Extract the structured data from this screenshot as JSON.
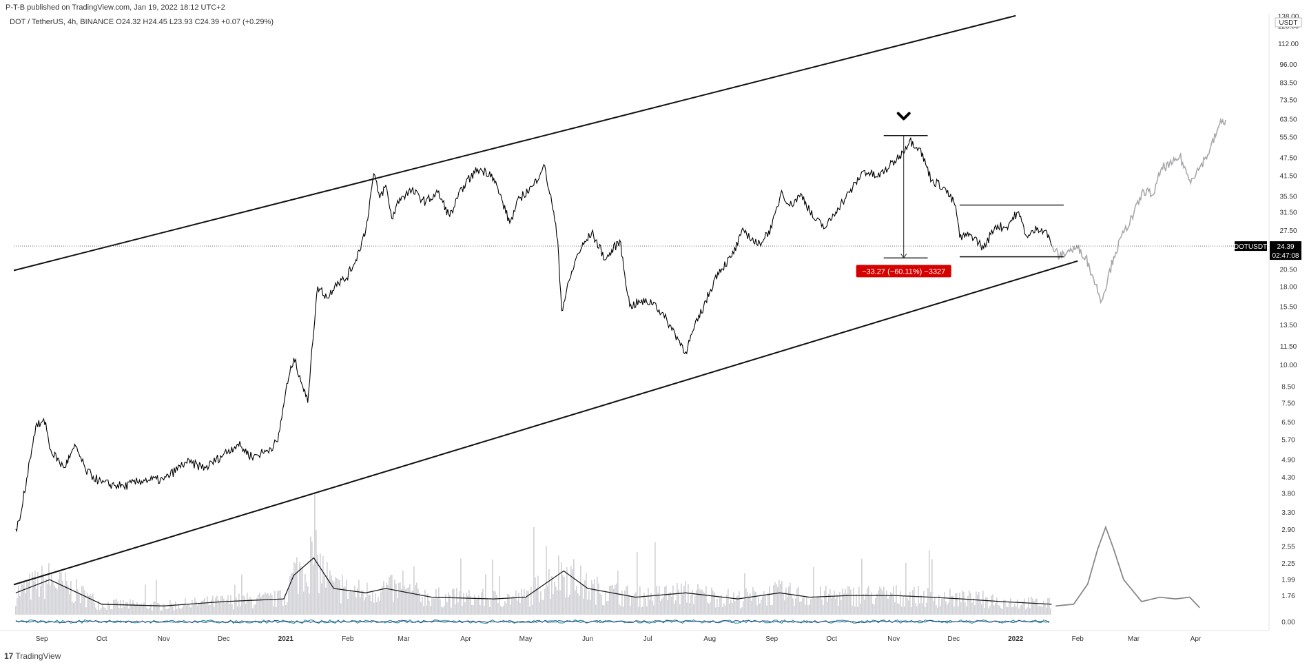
{
  "header": {
    "published": "P-T-B published on TradingView.com, Jan 19, 2022 18:12 UTC+2",
    "symbol_info": "DOT / TetherUS, 4h, BINANCE  O24.32  H24.45  L23.93  C24.39  +0.07 (+0.29%)"
  },
  "footer": {
    "logo_icon": "tradingview-logo-icon",
    "brand": "TradingView",
    "logo_glyph": "17"
  },
  "colors": {
    "price": "#000000",
    "projection": "#a8a8ad",
    "volume": "#c0c2c7",
    "badge": "#d50000",
    "osc1": "#0f8a8a",
    "osc2": "#1e3a8a"
  },
  "chart_data": {
    "type": "line",
    "symbol": "DOTUSDT",
    "interval": "4h",
    "exchange": "BINANCE",
    "currency": "USDT",
    "log_scale": true,
    "ylim": [
      1.5,
      140
    ],
    "y_ticks": [
      138.0,
      128.0,
      112.0,
      96.0,
      83.5,
      73.5,
      63.5,
      55.5,
      47.5,
      41.5,
      35.5,
      31.5,
      27.5,
      23.5,
      20.5,
      18.0,
      15.5,
      13.5,
      11.5,
      10.0,
      8.5,
      7.5,
      6.5,
      5.7,
      4.9,
      4.3,
      3.8,
      3.3,
      2.9,
      2.55,
      2.25,
      1.99,
      1.76
    ],
    "y_tick_labels": [
      "138.00",
      "128.00",
      "112.00",
      "96.00",
      "83.50",
      "73.50",
      "63.50",
      "55.50",
      "47.50",
      "41.50",
      "35.50",
      "31.50",
      "27.50",
      "23.50",
      "20.50",
      "18.00",
      "15.50",
      "13.50",
      "11.50",
      "10.00",
      "8.50",
      "7.50",
      "6.50",
      "5.70",
      "4.90",
      "4.30",
      "3.80",
      "3.30",
      "2.90",
      "2.55",
      "2.25",
      "1.99",
      "1.76"
    ],
    "osc_tick_label": "0.00",
    "x_ticks": [
      "Sep",
      "Oct",
      "Nov",
      "Dec",
      "2021",
      "Feb",
      "Mar",
      "Apr",
      "May",
      "Jun",
      "Jul",
      "Aug",
      "Sep",
      "Oct",
      "Nov",
      "Dec",
      "2022",
      "Feb",
      "Mar",
      "Apr"
    ],
    "x_tick_dates": [
      "2020-09-01",
      "2020-10-01",
      "2020-11-01",
      "2020-12-01",
      "2021-01-01",
      "2021-02-01",
      "2021-03-01",
      "2021-04-01",
      "2021-05-01",
      "2021-06-01",
      "2021-07-01",
      "2021-08-01",
      "2021-09-01",
      "2021-10-01",
      "2021-11-01",
      "2021-12-01",
      "2022-01-01",
      "2022-02-01",
      "2022-03-01",
      "2022-04-01"
    ],
    "x_range": [
      "2020-08-18",
      "2022-05-07"
    ],
    "price_series": {
      "name": "DOTUSDT",
      "x": [
        "2020-08-19",
        "2020-08-21",
        "2020-08-26",
        "2020-08-29",
        "2020-09-03",
        "2020-09-05",
        "2020-09-12",
        "2020-09-18",
        "2020-09-23",
        "2020-10-01",
        "2020-10-12",
        "2020-10-22",
        "2020-11-01",
        "2020-11-12",
        "2020-11-22",
        "2020-12-01",
        "2020-12-08",
        "2020-12-15",
        "2020-12-22",
        "2020-12-28",
        "2021-01-01",
        "2021-01-05",
        "2021-01-08",
        "2021-01-12",
        "2021-01-14",
        "2021-01-17",
        "2021-01-22",
        "2021-01-26",
        "2021-01-31",
        "2021-02-05",
        "2021-02-10",
        "2021-02-14",
        "2021-02-17",
        "2021-02-20",
        "2021-02-23",
        "2021-02-27",
        "2021-03-05",
        "2021-03-12",
        "2021-03-18",
        "2021-03-24",
        "2021-03-31",
        "2021-04-07",
        "2021-04-14",
        "2021-04-18",
        "2021-04-23",
        "2021-04-28",
        "2021-05-05",
        "2021-05-10",
        "2021-05-14",
        "2021-05-17",
        "2021-05-19",
        "2021-05-23",
        "2021-05-27",
        "2021-06-03",
        "2021-06-10",
        "2021-06-17",
        "2021-06-22",
        "2021-06-27",
        "2021-07-04",
        "2021-07-12",
        "2021-07-20",
        "2021-07-24",
        "2021-07-29",
        "2021-08-05",
        "2021-08-12",
        "2021-08-18",
        "2021-08-25",
        "2021-09-01",
        "2021-09-06",
        "2021-09-10",
        "2021-09-16",
        "2021-09-22",
        "2021-09-28",
        "2021-10-04",
        "2021-10-10",
        "2021-10-17",
        "2021-10-24",
        "2021-10-30",
        "2021-11-04",
        "2021-11-09",
        "2021-11-14",
        "2021-11-20",
        "2021-11-26",
        "2021-12-02",
        "2021-12-04",
        "2021-12-10",
        "2021-12-16",
        "2021-12-22",
        "2021-12-27",
        "2022-01-02",
        "2022-01-07",
        "2022-01-12",
        "2022-01-16",
        "2022-01-19"
      ],
      "y": [
        2.9,
        3.1,
        4.9,
        6.3,
        6.5,
        5.3,
        4.6,
        5.4,
        4.5,
        4.1,
        4.0,
        4.2,
        4.2,
        4.8,
        4.6,
        5.1,
        5.5,
        5.0,
        5.2,
        5.6,
        8.2,
        10.5,
        9.2,
        7.5,
        11.2,
        18.0,
        16.5,
        18.5,
        19.0,
        22.0,
        27.5,
        42.0,
        35.0,
        38.5,
        30.0,
        35.0,
        37.0,
        34.0,
        36.5,
        30.5,
        38.5,
        43.5,
        42.0,
        36.0,
        29.0,
        35.0,
        38.5,
        45.0,
        34.0,
        25.5,
        15.0,
        19.0,
        23.0,
        27.0,
        22.0,
        25.5,
        15.5,
        16.0,
        16.0,
        13.5,
        11.0,
        13.0,
        15.5,
        20.0,
        22.5,
        27.5,
        24.5,
        28.0,
        37.0,
        33.0,
        36.0,
        30.0,
        28.0,
        32.5,
        36.5,
        43.0,
        41.0,
        44.5,
        48.0,
        54.0,
        51.0,
        40.0,
        38.0,
        33.0,
        26.0,
        26.5,
        24.0,
        28.5,
        28.0,
        31.5,
        26.0,
        28.0,
        27.5,
        24.4
      ]
    },
    "projection_series": {
      "name": "projection",
      "x": [
        "2022-01-19",
        "2022-01-23",
        "2022-01-27",
        "2022-02-01",
        "2022-02-05",
        "2022-02-09",
        "2022-02-13",
        "2022-02-16",
        "2022-02-19",
        "2022-02-24",
        "2022-03-01",
        "2022-03-06",
        "2022-03-11",
        "2022-03-15",
        "2022-03-20",
        "2022-03-24",
        "2022-03-29",
        "2022-04-03",
        "2022-04-08",
        "2022-04-13",
        "2022-04-16"
      ],
      "y": [
        24.4,
        22.5,
        23.5,
        24.0,
        22.5,
        19.0,
        16.2,
        19.0,
        22.5,
        27.0,
        31.0,
        37.0,
        36.0,
        44.0,
        45.0,
        48.0,
        40.0,
        44.0,
        50.0,
        61.0,
        63.0
      ]
    },
    "current_price": {
      "value": 24.39,
      "label": "24.39",
      "symbol_label": "DOTUSDT",
      "countdown": "02:47:08"
    },
    "channel_lines": [
      {
        "name": "channel-upper",
        "p1": [
          "2020-08-18",
          20.3
        ],
        "p2": [
          "2022-01-01",
          138.0
        ]
      },
      {
        "name": "channel-lower",
        "p1": [
          "2020-08-18",
          1.91
        ],
        "p2": [
          "2022-02-01",
          21.8
        ]
      }
    ],
    "range_lines": [
      {
        "name": "peak-line",
        "x1": "2021-10-27",
        "x2": "2021-11-18",
        "y": 56.0
      },
      {
        "name": "drop-target-line",
        "x1": "2021-10-27",
        "x2": "2021-11-18",
        "y": 22.3
      },
      {
        "name": "range-top-line",
        "x1": "2021-12-04",
        "x2": "2022-01-25",
        "y": 33.2
      },
      {
        "name": "range-bottom-line",
        "x1": "2021-12-04",
        "x2": "2022-01-25",
        "y": 22.5
      }
    ],
    "measure_arrow": {
      "x": "2021-11-06",
      "y_from": 56.0,
      "y_to": 22.3
    },
    "peak_marker": {
      "x": "2021-11-06",
      "y": 64.5,
      "icon": "chevron-down-icon"
    },
    "measure_label": {
      "x": "2021-11-06",
      "y": 20.0,
      "text": "−33.27 (−60.11%) −3327"
    },
    "volume_series": {
      "name": "volume-ma",
      "x": [
        "2020-08-19",
        "2020-09-05",
        "2020-10-01",
        "2020-11-01",
        "2020-12-01",
        "2020-12-31",
        "2021-01-05",
        "2021-01-15",
        "2021-01-25",
        "2021-02-10",
        "2021-02-20",
        "2021-03-15",
        "2021-04-15",
        "2021-05-01",
        "2021-05-20",
        "2021-06-01",
        "2021-06-25",
        "2021-07-20",
        "2021-08-15",
        "2021-09-05",
        "2021-09-20",
        "2021-10-10",
        "2021-11-01",
        "2021-11-20",
        "2021-12-05",
        "2021-12-25",
        "2022-01-19"
      ],
      "y": [
        0.25,
        0.4,
        0.12,
        0.1,
        0.15,
        0.18,
        0.45,
        0.65,
        0.3,
        0.25,
        0.3,
        0.2,
        0.18,
        0.2,
        0.5,
        0.3,
        0.2,
        0.25,
        0.18,
        0.25,
        0.2,
        0.22,
        0.22,
        0.2,
        0.18,
        0.15,
        0.12
      ]
    },
    "volume_projection": {
      "name": "volume-projection",
      "x": [
        "2022-01-21",
        "2022-01-30",
        "2022-02-06",
        "2022-02-11",
        "2022-02-15",
        "2022-02-19",
        "2022-02-24",
        "2022-03-05",
        "2022-03-14",
        "2022-03-22",
        "2022-03-29",
        "2022-04-03"
      ],
      "y": [
        0.1,
        0.12,
        0.35,
        0.75,
        1.0,
        0.75,
        0.4,
        0.15,
        0.2,
        0.18,
        0.2,
        0.08
      ]
    }
  }
}
